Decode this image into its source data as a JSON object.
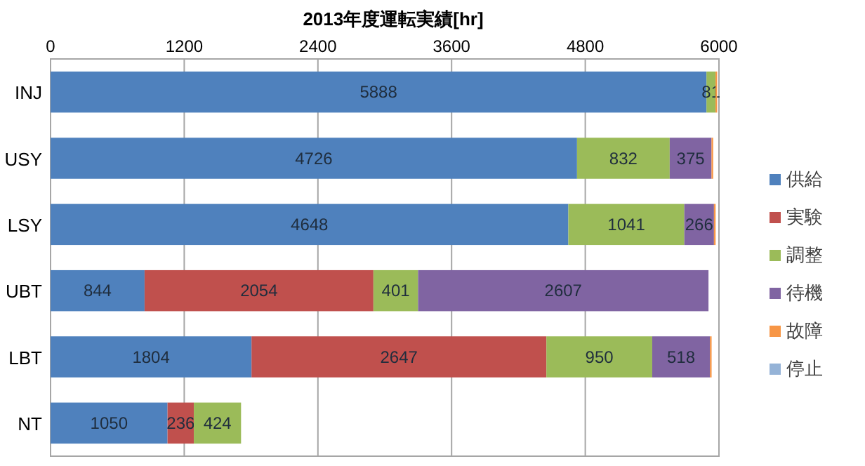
{
  "chart_data": {
    "type": "bar",
    "title": "2013年度運転実績[hr]",
    "orientation": "horizontal",
    "stacked": true,
    "categories": [
      "INJ",
      "USY",
      "LSY",
      "UBT",
      "LBT",
      "NT"
    ],
    "series": [
      {
        "name": "供給",
        "color": "#4f81bd",
        "values": [
          5888,
          4726,
          4648,
          844,
          1804,
          1050
        ],
        "value_labels": [
          "5888",
          "4726",
          "4648",
          "844",
          "1804",
          "1050"
        ]
      },
      {
        "name": "実験",
        "color": "#c0504d",
        "values": [
          0,
          0,
          0,
          2054,
          2647,
          236
        ],
        "value_labels": [
          null,
          null,
          null,
          "2054",
          "2647",
          "236"
        ]
      },
      {
        "name": "調整",
        "color": "#9bbb59",
        "values": [
          81,
          832,
          1041,
          401,
          950,
          424
        ],
        "value_labels": [
          "81",
          "832",
          "1041",
          "401",
          "950",
          "424"
        ]
      },
      {
        "name": "待機",
        "color": "#8064a2",
        "values": [
          0,
          375,
          266,
          2607,
          518,
          0
        ],
        "value_labels": [
          null,
          "375",
          "266",
          "2607",
          "518",
          null
        ]
      },
      {
        "name": "故障",
        "color": "#f79646",
        "values": [
          15,
          15,
          15,
          0,
          15,
          0
        ],
        "value_labels": [
          null,
          null,
          null,
          null,
          null,
          null
        ]
      },
      {
        "name": "停止",
        "color": "#95b3d7",
        "values": [
          0,
          0,
          0,
          0,
          0,
          0
        ],
        "value_labels": [
          null,
          null,
          null,
          null,
          null,
          null
        ]
      }
    ],
    "xlim": [
      0,
      6000
    ],
    "xticks": [
      0,
      1200,
      2400,
      3600,
      4800,
      6000
    ],
    "grid": "x",
    "legend": "right"
  }
}
